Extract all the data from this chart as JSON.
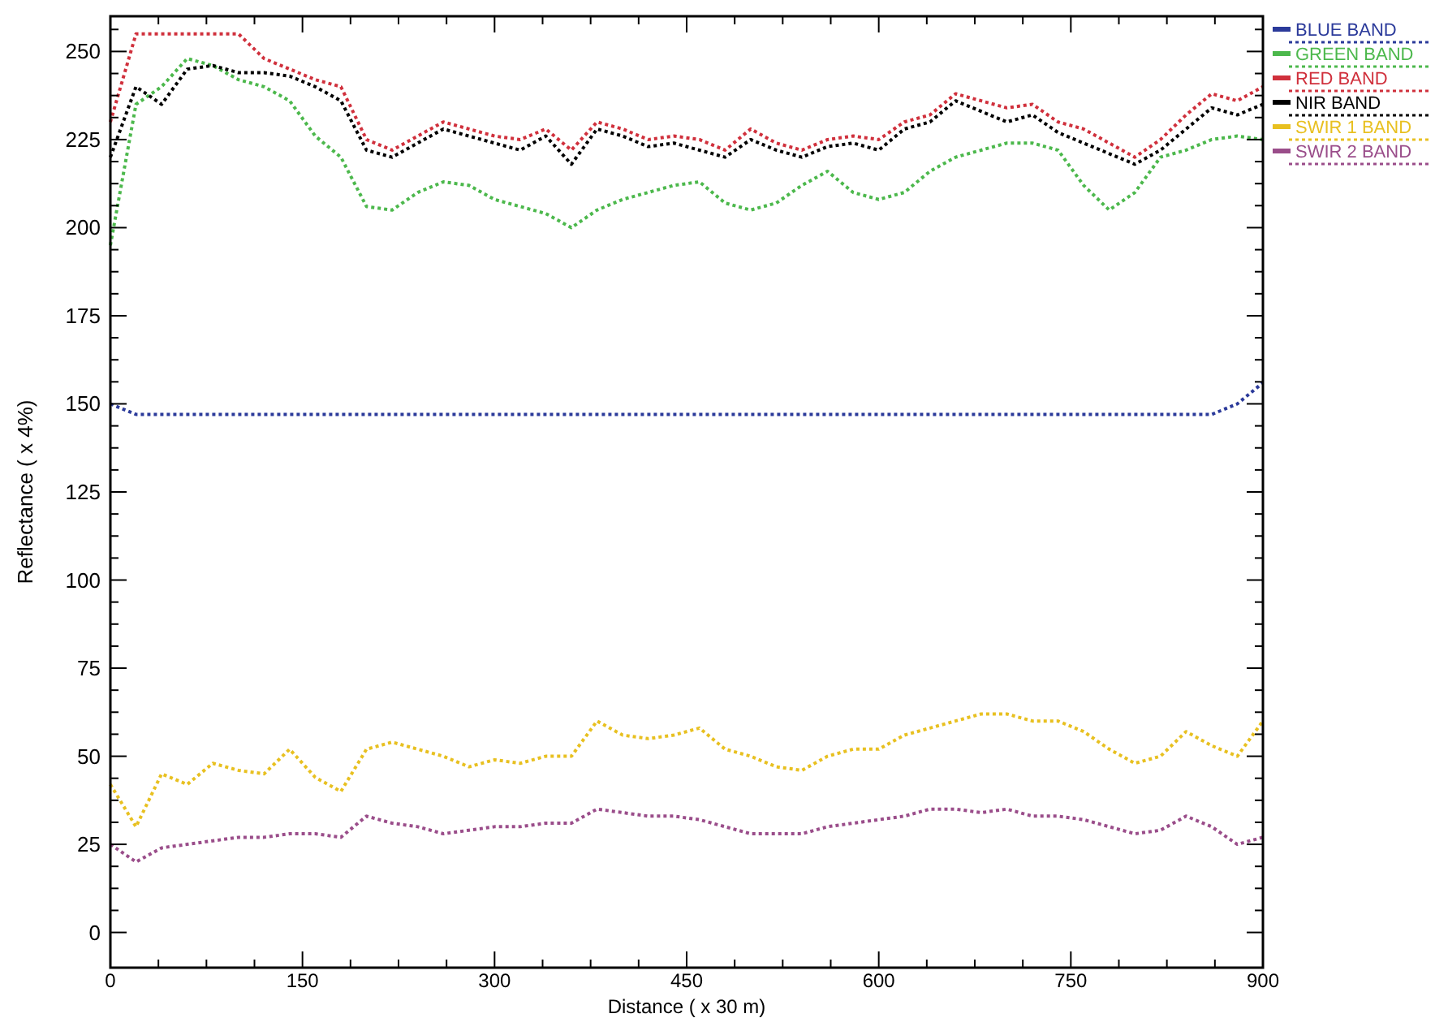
{
  "chart_data": {
    "type": "line",
    "xlabel": "Distance ( x 30 m)",
    "ylabel": "Reflectance ( x 4%)",
    "x": [
      0,
      20,
      40,
      60,
      80,
      100,
      120,
      140,
      160,
      180,
      200,
      220,
      240,
      260,
      280,
      300,
      320,
      340,
      360,
      380,
      400,
      420,
      440,
      460,
      480,
      500,
      520,
      540,
      560,
      580,
      600,
      620,
      640,
      660,
      680,
      700,
      720,
      740,
      760,
      780,
      800,
      820,
      840,
      860,
      880,
      900
    ],
    "xlim": [
      0,
      900
    ],
    "ylim": [
      -10,
      260
    ],
    "xticks": [
      0,
      {
        "value": 37.5,
        "label": null
      },
      {
        "value": 75,
        "label": null
      },
      {
        "value": 112.5,
        "label": null
      },
      150,
      {
        "value": 187.5,
        "label": null
      },
      {
        "value": 225,
        "label": null
      },
      {
        "value": 262.5,
        "label": null
      },
      300,
      {
        "value": 337.5,
        "label": null
      },
      {
        "value": 375,
        "label": null
      },
      {
        "value": 412.5,
        "label": null
      },
      450,
      {
        "value": 487.5,
        "label": null
      },
      {
        "value": 525,
        "label": null
      },
      {
        "value": 562.5,
        "label": null
      },
      600,
      {
        "value": 637.5,
        "label": null
      },
      {
        "value": 675,
        "label": null
      },
      {
        "value": 712.5,
        "label": null
      },
      750,
      {
        "value": 787.5,
        "label": null
      },
      {
        "value": 825,
        "label": null
      },
      {
        "value": 862.5,
        "label": null
      },
      900
    ],
    "yticks": [
      0,
      {
        "value": 6.25,
        "label": null
      },
      {
        "value": 12.5,
        "label": null
      },
      {
        "value": 18.75,
        "label": null
      },
      25,
      {
        "value": 31.25,
        "label": null
      },
      {
        "value": 37.5,
        "label": null
      },
      {
        "value": 43.75,
        "label": null
      },
      50,
      {
        "value": 56.25,
        "label": null
      },
      {
        "value": 62.5,
        "label": null
      },
      {
        "value": 68.75,
        "label": null
      },
      75,
      {
        "value": 81.25,
        "label": null
      },
      {
        "value": 87.5,
        "label": null
      },
      {
        "value": 93.75,
        "label": null
      },
      100,
      {
        "value": 106.25,
        "label": null
      },
      {
        "value": 112.5,
        "label": null
      },
      {
        "value": 118.75,
        "label": null
      },
      125,
      {
        "value": 131.25,
        "label": null
      },
      {
        "value": 137.5,
        "label": null
      },
      {
        "value": 143.75,
        "label": null
      },
      150,
      {
        "value": 156.25,
        "label": null
      },
      {
        "value": 162.5,
        "label": null
      },
      {
        "value": 168.75,
        "label": null
      },
      175,
      {
        "value": 181.25,
        "label": null
      },
      {
        "value": 187.5,
        "label": null
      },
      {
        "value": 193.75,
        "label": null
      },
      200,
      {
        "value": 206.25,
        "label": null
      },
      {
        "value": 212.5,
        "label": null
      },
      {
        "value": 218.75,
        "label": null
      },
      225,
      {
        "value": 231.25,
        "label": null
      },
      {
        "value": 237.5,
        "label": null
      },
      {
        "value": 243.75,
        "label": null
      },
      250,
      {
        "value": 256.25,
        "label": null
      }
    ],
    "grid": false,
    "legend": "right",
    "line_style": "dotted",
    "series": [
      {
        "name": "BLUE BAND",
        "color": "#2b3a9a",
        "values": [
          150,
          147,
          147,
          147,
          147,
          147,
          147,
          147,
          147,
          147,
          147,
          147,
          147,
          147,
          147,
          147,
          147,
          147,
          147,
          147,
          147,
          147,
          147,
          147,
          147,
          147,
          147,
          147,
          147,
          147,
          147,
          147,
          147,
          147,
          147,
          147,
          147,
          147,
          147,
          147,
          147,
          147,
          147,
          147,
          150,
          156
        ]
      },
      {
        "name": "GREEN BAND",
        "color": "#4cb84c",
        "values": [
          195,
          235,
          240,
          248,
          246,
          242,
          240,
          236,
          226,
          220,
          206,
          205,
          210,
          213,
          212,
          208,
          206,
          204,
          200,
          205,
          208,
          210,
          212,
          213,
          207,
          205,
          207,
          212,
          216,
          210,
          208,
          210,
          216,
          220,
          222,
          224,
          224,
          222,
          212,
          205,
          210,
          220,
          222,
          225,
          226,
          225
        ]
      },
      {
        "name": "RED BAND",
        "color": "#d0303c",
        "values": [
          230,
          255,
          255,
          255,
          255,
          255,
          248,
          245,
          242,
          240,
          225,
          222,
          226,
          230,
          228,
          226,
          225,
          228,
          222,
          230,
          228,
          225,
          226,
          225,
          222,
          228,
          224,
          222,
          225,
          226,
          225,
          230,
          232,
          238,
          236,
          234,
          235,
          230,
          228,
          224,
          220,
          225,
          232,
          238,
          236,
          240
        ]
      },
      {
        "name": "NIR BAND",
        "color": "#000000",
        "values": [
          220,
          240,
          235,
          245,
          246,
          244,
          244,
          243,
          240,
          236,
          222,
          220,
          224,
          228,
          226,
          224,
          222,
          226,
          218,
          228,
          226,
          223,
          224,
          222,
          220,
          225,
          222,
          220,
          223,
          224,
          222,
          228,
          230,
          236,
          233,
          230,
          232,
          227,
          224,
          221,
          218,
          222,
          228,
          234,
          232,
          235
        ]
      },
      {
        "name": "SWIR 1 BAND",
        "color": "#e8c020",
        "values": [
          42,
          30,
          45,
          42,
          48,
          46,
          45,
          52,
          44,
          40,
          52,
          54,
          52,
          50,
          47,
          49,
          48,
          50,
          50,
          60,
          56,
          55,
          56,
          58,
          52,
          50,
          47,
          46,
          50,
          52,
          52,
          56,
          58,
          60,
          62,
          62,
          60,
          60,
          57,
          52,
          48,
          50,
          57,
          53,
          50,
          60
        ]
      },
      {
        "name": "SWIR 2 BAND",
        "color": "#9a4d8a",
        "values": [
          25,
          20,
          24,
          25,
          26,
          27,
          27,
          28,
          28,
          27,
          33,
          31,
          30,
          28,
          29,
          30,
          30,
          31,
          31,
          35,
          34,
          33,
          33,
          32,
          30,
          28,
          28,
          28,
          30,
          31,
          32,
          33,
          35,
          35,
          34,
          35,
          33,
          33,
          32,
          30,
          28,
          29,
          33,
          30,
          25,
          27
        ]
      }
    ]
  }
}
